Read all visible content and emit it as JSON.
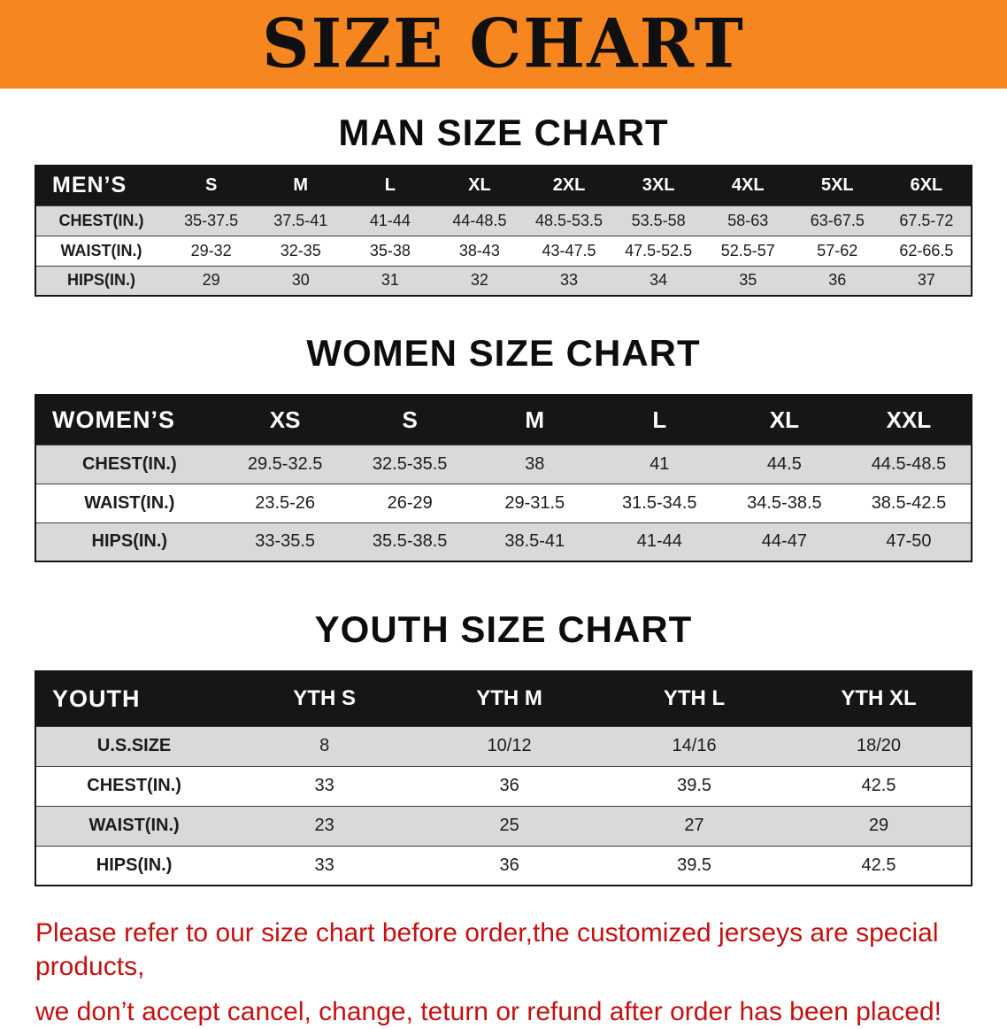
{
  "banner": {
    "title": "SIZE CHART",
    "bg_color": "#f6861f",
    "text_color": "#101010"
  },
  "sections": [
    {
      "heading": "MAN SIZE CHART",
      "table": {
        "corner_label": "MEN’S",
        "columns": [
          "S",
          "M",
          "L",
          "XL",
          "2XL",
          "3XL",
          "4XL",
          "5XL",
          "6XL"
        ],
        "rows": [
          {
            "label": "CHEST(IN.)",
            "values": [
              "35-37.5",
              "37.5-41",
              "41-44",
              "44-48.5",
              "48.5-53.5",
              "53.5-58",
              "58-63",
              "63-67.5",
              "67.5-72"
            ]
          },
          {
            "label": "WAIST(IN.)",
            "values": [
              "29-32",
              "32-35",
              "35-38",
              "38-43",
              "43-47.5",
              "47.5-52.5",
              "52.5-57",
              "57-62",
              "62-66.5"
            ]
          },
          {
            "label": "HIPS(IN.)",
            "values": [
              "29",
              "30",
              "31",
              "32",
              "33",
              "34",
              "35",
              "36",
              "37"
            ]
          }
        ]
      }
    },
    {
      "heading": "WOMEN SIZE CHART",
      "table": {
        "corner_label": "WOMEN’S",
        "columns": [
          "XS",
          "S",
          "M",
          "L",
          "XL",
          "XXL"
        ],
        "rows": [
          {
            "label": "CHEST(IN.)",
            "values": [
              "29.5-32.5",
              "32.5-35.5",
              "38",
              "41",
              "44.5",
              "44.5-48.5"
            ]
          },
          {
            "label": "WAIST(IN.)",
            "values": [
              "23.5-26",
              "26-29",
              "29-31.5",
              "31.5-34.5",
              "34.5-38.5",
              "38.5-42.5"
            ]
          },
          {
            "label": "HIPS(IN.)",
            "values": [
              "33-35.5",
              "35.5-38.5",
              "38.5-41",
              "41-44",
              "44-47",
              "47-50"
            ]
          }
        ]
      }
    },
    {
      "heading": "YOUTH SIZE CHART",
      "table": {
        "corner_label": "YOUTH",
        "columns": [
          "YTH S",
          "YTH M",
          "YTH L",
          "YTH XL"
        ],
        "rows": [
          {
            "label": "U.S.SIZE",
            "values": [
              "8",
              "10/12",
              "14/16",
              "18/20"
            ]
          },
          {
            "label": "CHEST(IN.)",
            "values": [
              "33",
              "36",
              "39.5",
              "42.5"
            ]
          },
          {
            "label": "WAIST(IN.)",
            "values": [
              "23",
              "25",
              "27",
              "29"
            ]
          },
          {
            "label": "HIPS(IN.)",
            "values": [
              "33",
              "36",
              "39.5",
              "42.5"
            ]
          }
        ]
      }
    }
  ],
  "footer": {
    "line1": "Please refer to our size chart before order,the customized jerseys are special products,",
    "line2": "we don’t accept cancel, change, teturn or refund after order has been placed!",
    "text_color": "#c41111"
  }
}
